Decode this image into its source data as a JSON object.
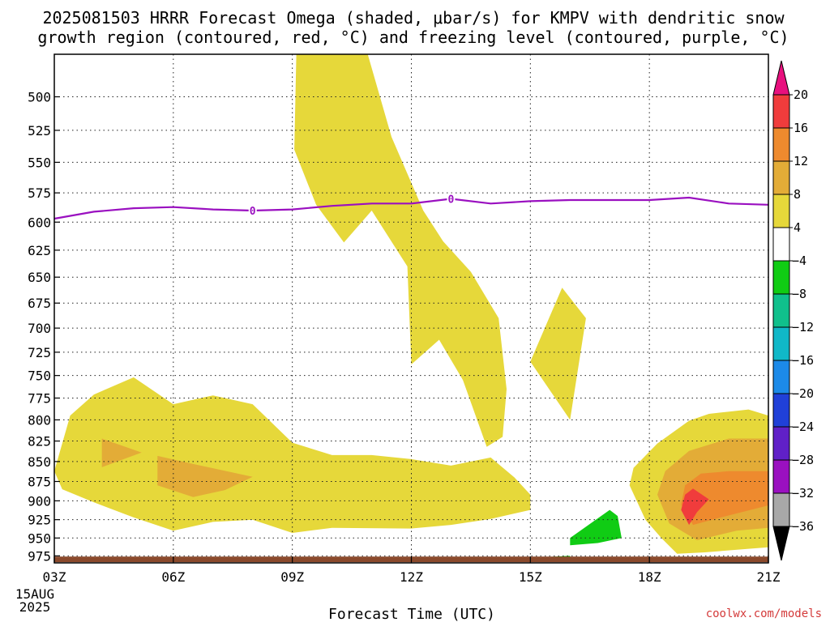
{
  "title_lines": [
    "2025081503 HRRR Forecast Omega (shaded, μbar/s) for KMPV with dendritic snow",
    "growth region (contoured, red, °C) and freezing level (contoured, purple, °C)"
  ],
  "credit": "coolwx.com/models",
  "chart_data": {
    "type": "area",
    "title": "2025081503 HRRR Forecast Omega (shaded, μbar/s) for KMPV with dendritic snow growth region (contoured, red, °C) and freezing level (contoured, purple, °C)",
    "xlabel": "Forecast Time (UTC)",
    "ylabel": "",
    "x_ticks": [
      "03Z",
      "06Z",
      "09Z",
      "12Z",
      "15Z",
      "18Z",
      "21Z"
    ],
    "x_date_label": [
      "15AUG",
      "2025"
    ],
    "xlim_hours": [
      3,
      21
    ],
    "y_ticks": [
      500,
      525,
      550,
      575,
      600,
      625,
      650,
      675,
      700,
      725,
      750,
      775,
      800,
      825,
      850,
      875,
      900,
      925,
      950,
      975
    ],
    "ylim_hpa": [
      470,
      985
    ],
    "y_scale": "log-pressure",
    "grid": true,
    "colorbar": {
      "label_values": [
        20,
        16,
        12,
        8,
        4,
        -4,
        -8,
        -12,
        -16,
        -20,
        -24,
        -28,
        -32,
        -36
      ],
      "bands": [
        {
          "range": "above 20",
          "color": "#e8107e"
        },
        {
          "range": "16 to 20",
          "color": "#f03c3c"
        },
        {
          "range": "12 to 16",
          "color": "#ee8a2e"
        },
        {
          "range": "8 to 12",
          "color": "#e3ac37"
        },
        {
          "range": "4 to 8",
          "color": "#e6d83a"
        },
        {
          "range": "-4 to 4",
          "color": "#ffffff"
        },
        {
          "range": "-8 to -4",
          "color": "#10cc14"
        },
        {
          "range": "-12 to -8",
          "color": "#10c08c"
        },
        {
          "range": "-16 to -12",
          "color": "#10b8c8"
        },
        {
          "range": "-20 to -16",
          "color": "#1c8ae8"
        },
        {
          "range": "-24 to -20",
          "color": "#2040d8"
        },
        {
          "range": "-28 to -24",
          "color": "#6020c8"
        },
        {
          "range": "-32 to -28",
          "color": "#9a10c0"
        },
        {
          "range": "-36 to -32",
          "color": "#a8a8a8"
        },
        {
          "range": "below -36",
          "color": "#000000"
        }
      ]
    },
    "freezing_level": {
      "label": "0",
      "color": "#9a10c0",
      "points": [
        [
          3.0,
          597
        ],
        [
          4.0,
          591
        ],
        [
          5.0,
          588
        ],
        [
          6.0,
          587
        ],
        [
          7.0,
          589
        ],
        [
          8.0,
          590
        ],
        [
          9.0,
          589
        ],
        [
          10.0,
          586
        ],
        [
          11.0,
          584
        ],
        [
          12.0,
          584
        ],
        [
          13.0,
          580
        ],
        [
          14.0,
          584
        ],
        [
          15.0,
          582
        ],
        [
          16.0,
          581
        ],
        [
          17.0,
          581
        ],
        [
          18.0,
          581
        ],
        [
          19.0,
          579
        ],
        [
          20.0,
          584
        ],
        [
          21.0,
          585
        ]
      ],
      "contour_labels_at_hours": [
        8,
        13
      ]
    },
    "regions": [
      {
        "name": "upper-positive-omega",
        "color": "#e6d83a",
        "points": [
          [
            9.1,
            470
          ],
          [
            10.9,
            470
          ],
          [
            11.5,
            530
          ],
          [
            12.3,
            590
          ],
          [
            12.8,
            617
          ],
          [
            13.5,
            645
          ],
          [
            14.2,
            690
          ],
          [
            14.4,
            765
          ],
          [
            14.3,
            820
          ],
          [
            13.9,
            832
          ],
          [
            13.3,
            755
          ],
          [
            12.7,
            712
          ],
          [
            12.0,
            738
          ],
          [
            11.9,
            640
          ],
          [
            11.0,
            590
          ],
          [
            10.3,
            618
          ],
          [
            9.6,
            585
          ],
          [
            9.05,
            540
          ]
        ]
      },
      {
        "name": "mid-positive-omega",
        "color": "#e6d83a",
        "points": [
          [
            15.0,
            735
          ],
          [
            15.8,
            660
          ],
          [
            16.4,
            690
          ],
          [
            16.0,
            800
          ]
        ]
      },
      {
        "name": "lower-positive-omega",
        "color": "#e6d83a",
        "points": [
          [
            3.0,
            862
          ],
          [
            3.4,
            795
          ],
          [
            4.0,
            771
          ],
          [
            5.0,
            752
          ],
          [
            6.0,
            782
          ],
          [
            7.0,
            772
          ],
          [
            8.0,
            782
          ],
          [
            9.0,
            827
          ],
          [
            10.0,
            842
          ],
          [
            11.0,
            842
          ],
          [
            12.0,
            847
          ],
          [
            13.0,
            855
          ],
          [
            14.0,
            845
          ],
          [
            14.6,
            870
          ],
          [
            15.0,
            892
          ],
          [
            15.0,
            912
          ],
          [
            14.0,
            924
          ],
          [
            13.0,
            932
          ],
          [
            12.0,
            937
          ],
          [
            10.0,
            936
          ],
          [
            9.0,
            943
          ],
          [
            8.0,
            925
          ],
          [
            7.0,
            928
          ],
          [
            6.0,
            940
          ],
          [
            5.0,
            922
          ],
          [
            4.0,
            902
          ],
          [
            3.2,
            885
          ]
        ]
      },
      {
        "name": "lower-orange-a",
        "color": "#e3ac37",
        "points": [
          [
            4.2,
            822
          ],
          [
            5.2,
            839
          ],
          [
            4.2,
            857
          ]
        ]
      },
      {
        "name": "lower-orange-b",
        "color": "#e3ac37",
        "points": [
          [
            5.6,
            843
          ],
          [
            6.5,
            853
          ],
          [
            8.0,
            869
          ],
          [
            7.3,
            886
          ],
          [
            6.5,
            895
          ],
          [
            5.6,
            880
          ]
        ]
      },
      {
        "name": "right-positive-omega",
        "color": "#e6d83a",
        "points": [
          [
            21.0,
            795
          ],
          [
            20.5,
            788
          ],
          [
            19.5,
            793
          ],
          [
            19.0,
            801
          ],
          [
            18.2,
            828
          ],
          [
            17.6,
            858
          ],
          [
            17.5,
            880
          ],
          [
            17.9,
            925
          ],
          [
            18.3,
            950
          ],
          [
            18.7,
            972
          ],
          [
            19.4,
            970
          ],
          [
            20.5,
            965
          ],
          [
            21.0,
            963
          ]
        ]
      },
      {
        "name": "right-orange",
        "color": "#e3ac37",
        "points": [
          [
            21.0,
            822
          ],
          [
            20.0,
            822
          ],
          [
            19.0,
            837
          ],
          [
            18.4,
            862
          ],
          [
            18.2,
            892
          ],
          [
            18.5,
            930
          ],
          [
            19.2,
            953
          ],
          [
            20.2,
            940
          ],
          [
            21.0,
            936
          ]
        ]
      },
      {
        "name": "right-deep-orange",
        "color": "#ee8a2e",
        "points": [
          [
            21.0,
            862
          ],
          [
            20.0,
            862
          ],
          [
            19.3,
            865
          ],
          [
            18.9,
            880
          ],
          [
            18.8,
            905
          ],
          [
            19.1,
            932
          ],
          [
            19.8,
            922
          ],
          [
            21.0,
            906
          ]
        ]
      },
      {
        "name": "right-red-core",
        "color": "#f03c3c",
        "points": [
          [
            19.1,
            884
          ],
          [
            19.5,
            898
          ],
          [
            19.2,
            915
          ],
          [
            19.0,
            932
          ],
          [
            18.8,
            912
          ],
          [
            18.9,
            892
          ]
        ]
      },
      {
        "name": "negative-omega-a",
        "color": "#10cc14",
        "points": [
          [
            16.0,
            950
          ],
          [
            17.0,
            912
          ],
          [
            17.2,
            920
          ],
          [
            17.3,
            950
          ],
          [
            16.7,
            957
          ],
          [
            16.0,
            960
          ]
        ]
      },
      {
        "name": "negative-omega-b",
        "color": "#10cc14",
        "points": [
          [
            15.0,
            978
          ],
          [
            16.0,
            975
          ],
          [
            16.0,
            978
          ],
          [
            15.0,
            981
          ]
        ]
      }
    ],
    "surface_band": {
      "color": "#8b4a2c",
      "from_hpa": 976,
      "to_hpa": 984
    }
  }
}
